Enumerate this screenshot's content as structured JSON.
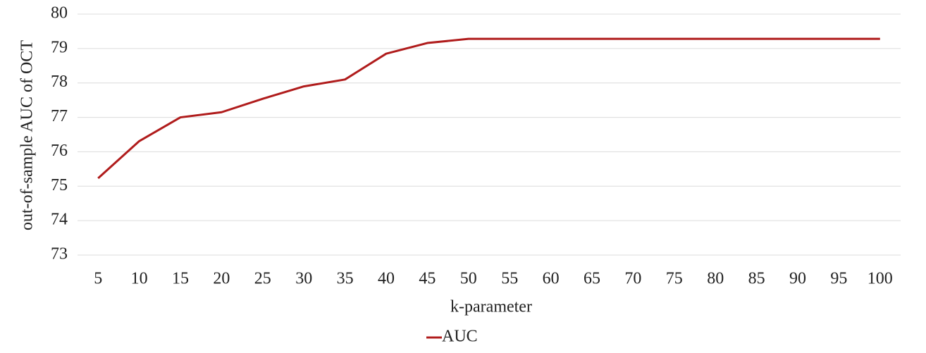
{
  "chart_data": {
    "type": "line",
    "x_label": "k-parameter",
    "y_label": "out-of-sample AUC of OCT",
    "categories": [
      "5",
      "10",
      "15",
      "20",
      "25",
      "30",
      "35",
      "40",
      "45",
      "50",
      "55",
      "60",
      "65",
      "70",
      "75",
      "80",
      "85",
      "90",
      "95",
      "100"
    ],
    "series": [
      {
        "name": "AUC",
        "color": "#b01c1c",
        "values": [
          75.23,
          76.31,
          77.0,
          77.15,
          77.54,
          77.9,
          78.1,
          78.85,
          79.16,
          79.28,
          79.28,
          79.28,
          79.28,
          79.28,
          79.28,
          79.28,
          79.28,
          79.28,
          79.28,
          79.28
        ]
      }
    ],
    "ylim": [
      73,
      80
    ],
    "yticks": [
      73,
      74,
      75,
      76,
      77,
      78,
      79,
      80
    ],
    "grid": true,
    "legend": "bottom"
  }
}
